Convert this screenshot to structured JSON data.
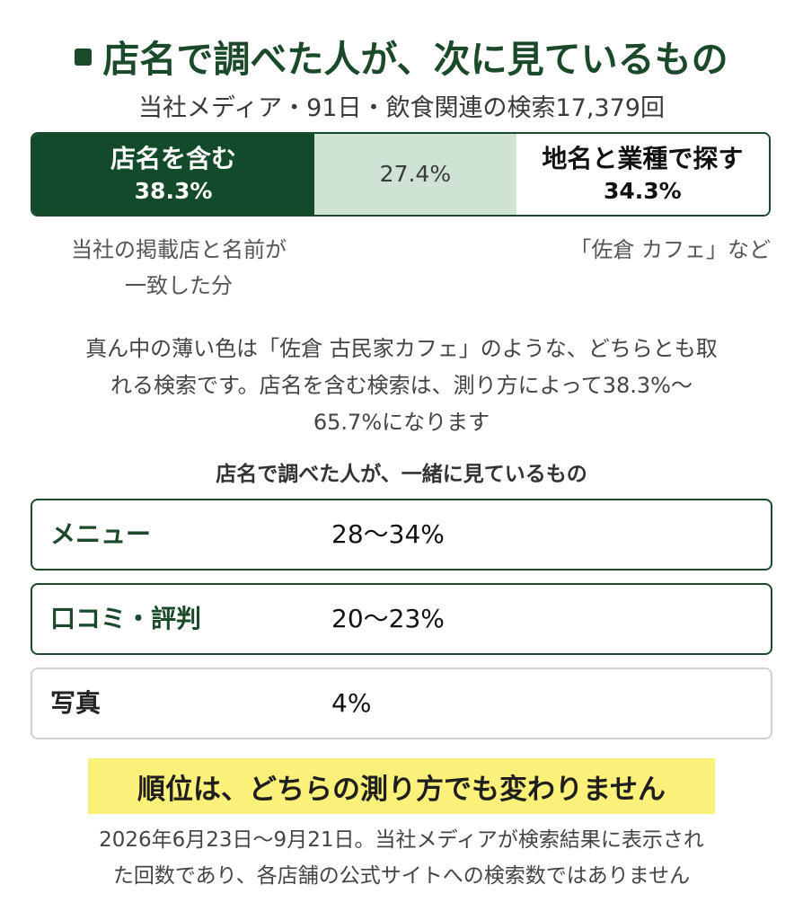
{
  "header": {
    "title": "店名で調べた人が、次に見ているもの",
    "subtitle": "当社メディア・91日・飲食関連の検索17,379回"
  },
  "chart_data": {
    "type": "bar",
    "stacked": true,
    "orientation": "horizontal",
    "categories": [
      "店名を含む",
      "",
      "地名と業種で探す"
    ],
    "values": [
      38.3,
      27.4,
      34.3
    ],
    "value_labels": [
      "38.3%",
      "27.4%",
      "34.3%"
    ],
    "colors": [
      "#134a2b",
      "#cfe3d5",
      "#ffffff"
    ],
    "notes": {
      "left": [
        "当社の掲載店と名前が",
        "一致した分"
      ],
      "right": "「佐倉 カフェ」など"
    }
  },
  "explanation": {
    "lines": [
      "真ん中の薄い色は「佐倉 古民家カフェ」のような、どちらとも取",
      "れる検索です。店名を含む検索は、測り方によって38.3%〜",
      "65.7%になります"
    ]
  },
  "section_title": "店名で調べた人が、一緒に見ているもの",
  "rows": [
    {
      "label": "メニュー",
      "value": "28〜34%"
    },
    {
      "label": "口コミ・評判",
      "value": "20〜23%"
    },
    {
      "label": "写真",
      "value": "4%"
    }
  ],
  "highlight": "順位は、どちらの測り方でも変わりません",
  "footer": {
    "lines": [
      "2026年6月23日〜9月21日。当社メディアが検索結果に表示され",
      "た回数であり、各店舗の公式サイトへの検索数ではありません"
    ]
  }
}
